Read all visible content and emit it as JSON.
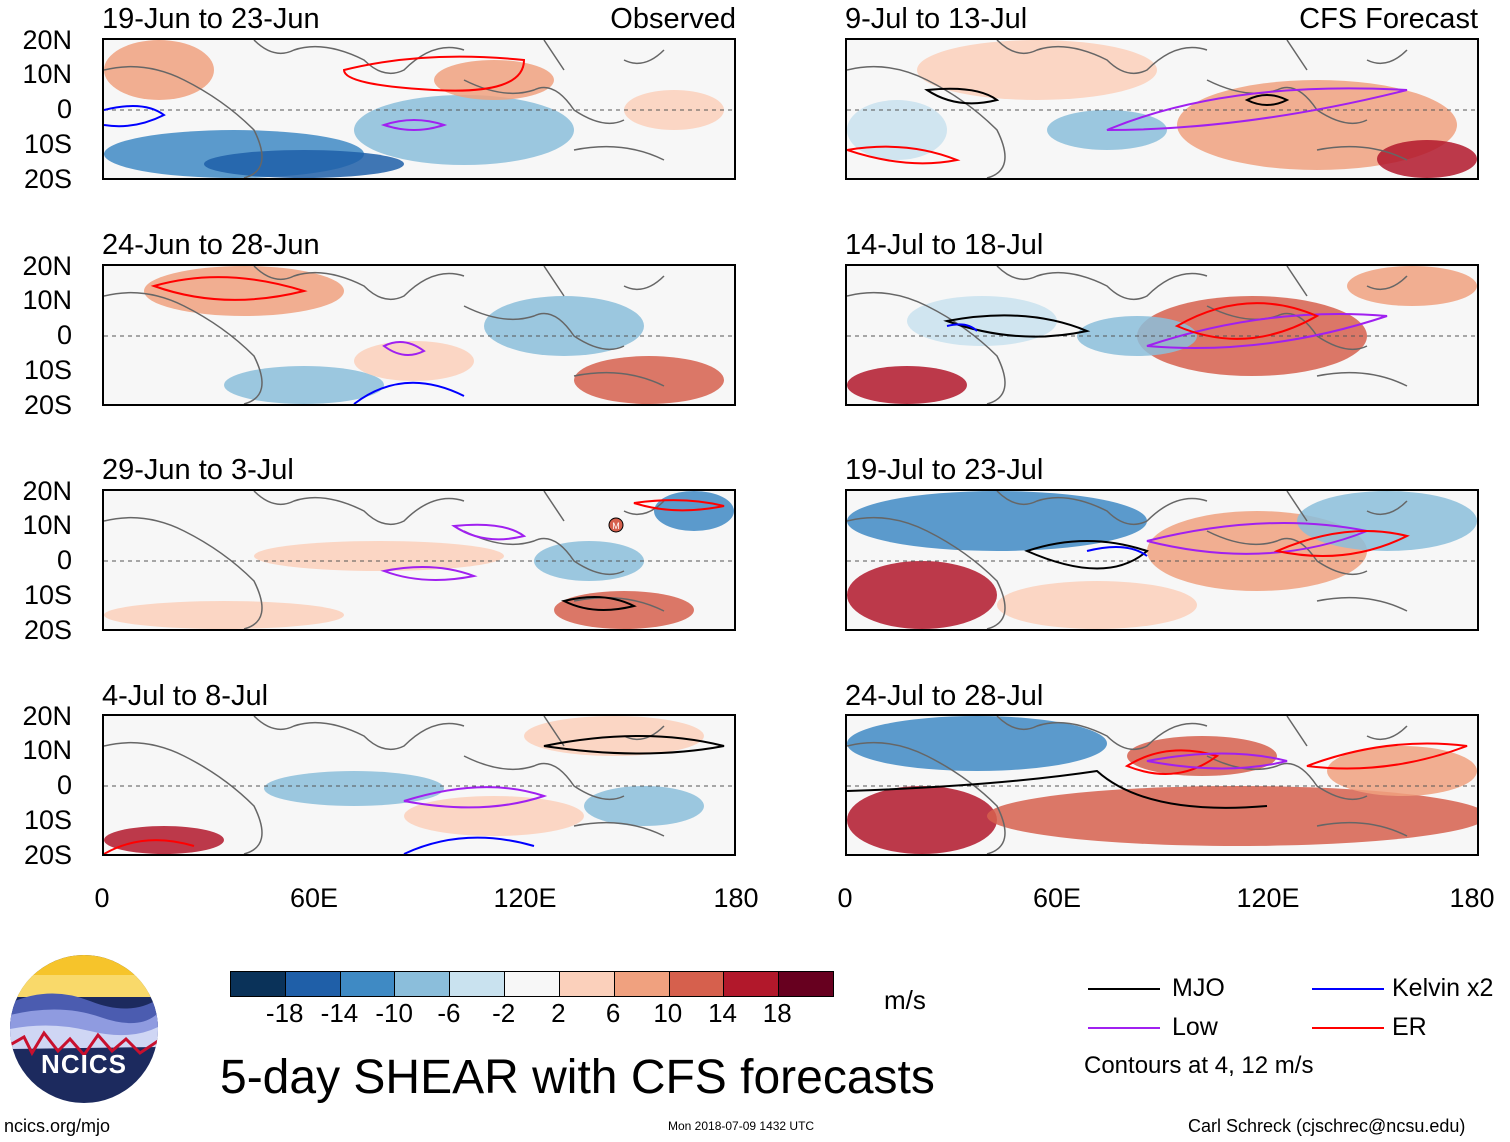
{
  "title": "5-day SHEAR with CFS forecasts",
  "panels_left": [
    {
      "dates": "19-Jun to 23-Jun",
      "label": "Observed"
    },
    {
      "dates": "24-Jun to 28-Jun",
      "label": ""
    },
    {
      "dates": "29-Jun to 3-Jul",
      "label": ""
    },
    {
      "dates": "4-Jul to 8-Jul",
      "label": ""
    }
  ],
  "panels_right": [
    {
      "dates": "9-Jul to 13-Jul",
      "label": "CFS Forecast"
    },
    {
      "dates": "14-Jul to 18-Jul",
      "label": ""
    },
    {
      "dates": "19-Jul to 23-Jul",
      "label": ""
    },
    {
      "dates": "24-Jul to 28-Jul",
      "label": ""
    }
  ],
  "lat_labels": [
    "20N",
    "10N",
    "0",
    "10S",
    "20S"
  ],
  "lon_labels": [
    "0",
    "60E",
    "120E",
    "180"
  ],
  "colorbar": {
    "ticks": [
      "-18",
      "-14",
      "-10",
      "-6",
      "-2",
      "2",
      "6",
      "10",
      "14",
      "18"
    ],
    "colors": [
      "#0a3259",
      "#1f5fa8",
      "#3f8ac4",
      "#8bbedb",
      "#c9e2ef",
      "#f7f7f7",
      "#fbd0bb",
      "#f0a17f",
      "#d6604d",
      "#b2182b",
      "#67001f"
    ],
    "units": "m/s"
  },
  "legend": {
    "items": [
      {
        "label": "MJO",
        "color": "#000000"
      },
      {
        "label": "Kelvin x2",
        "color": "#0000ff"
      },
      {
        "label": "Low",
        "color": "#a020f0"
      },
      {
        "label": "ER",
        "color": "#ff0000"
      }
    ],
    "note": "Contours at 4, 12 m/s"
  },
  "logo": {
    "text": "NCICS"
  },
  "footer": {
    "left": "ncics.org/mjo",
    "center": "Mon 2018-07-09 1432 UTC",
    "right": "Carl Schreck (cjschrec@ncsu.edu)"
  },
  "storm_marker": "M"
}
